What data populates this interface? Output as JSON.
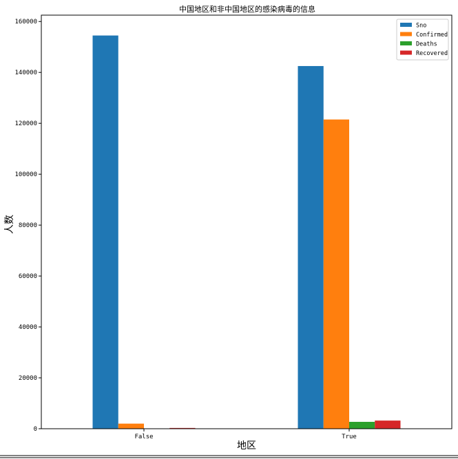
{
  "chart_data": {
    "type": "bar",
    "title": "中国地区和非中国地区的感染病毒的信息",
    "xlabel": "地区",
    "ylabel": "人数",
    "categories": [
      "False",
      "True"
    ],
    "series": [
      {
        "name": "Sno",
        "color": "#1f77b4",
        "values": [
          154500,
          142500
        ]
      },
      {
        "name": "Confirmed",
        "color": "#ff7f0e",
        "values": [
          2000,
          121500
        ]
      },
      {
        "name": "Deaths",
        "color": "#2ca02c",
        "values": [
          0,
          2700
        ]
      },
      {
        "name": "Recovered",
        "color": "#d62728",
        "values": [
          300,
          3200
        ]
      }
    ],
    "ylim": [
      0,
      162500
    ],
    "yticks": [
      0,
      20000,
      40000,
      60000,
      80000,
      100000,
      120000,
      140000,
      160000
    ],
    "ytick_labels": [
      "0",
      "20000",
      "40000",
      "60000",
      "80000",
      "100000",
      "120000",
      "140000",
      "160000"
    ],
    "grid": false,
    "legend_position": "top-right"
  }
}
